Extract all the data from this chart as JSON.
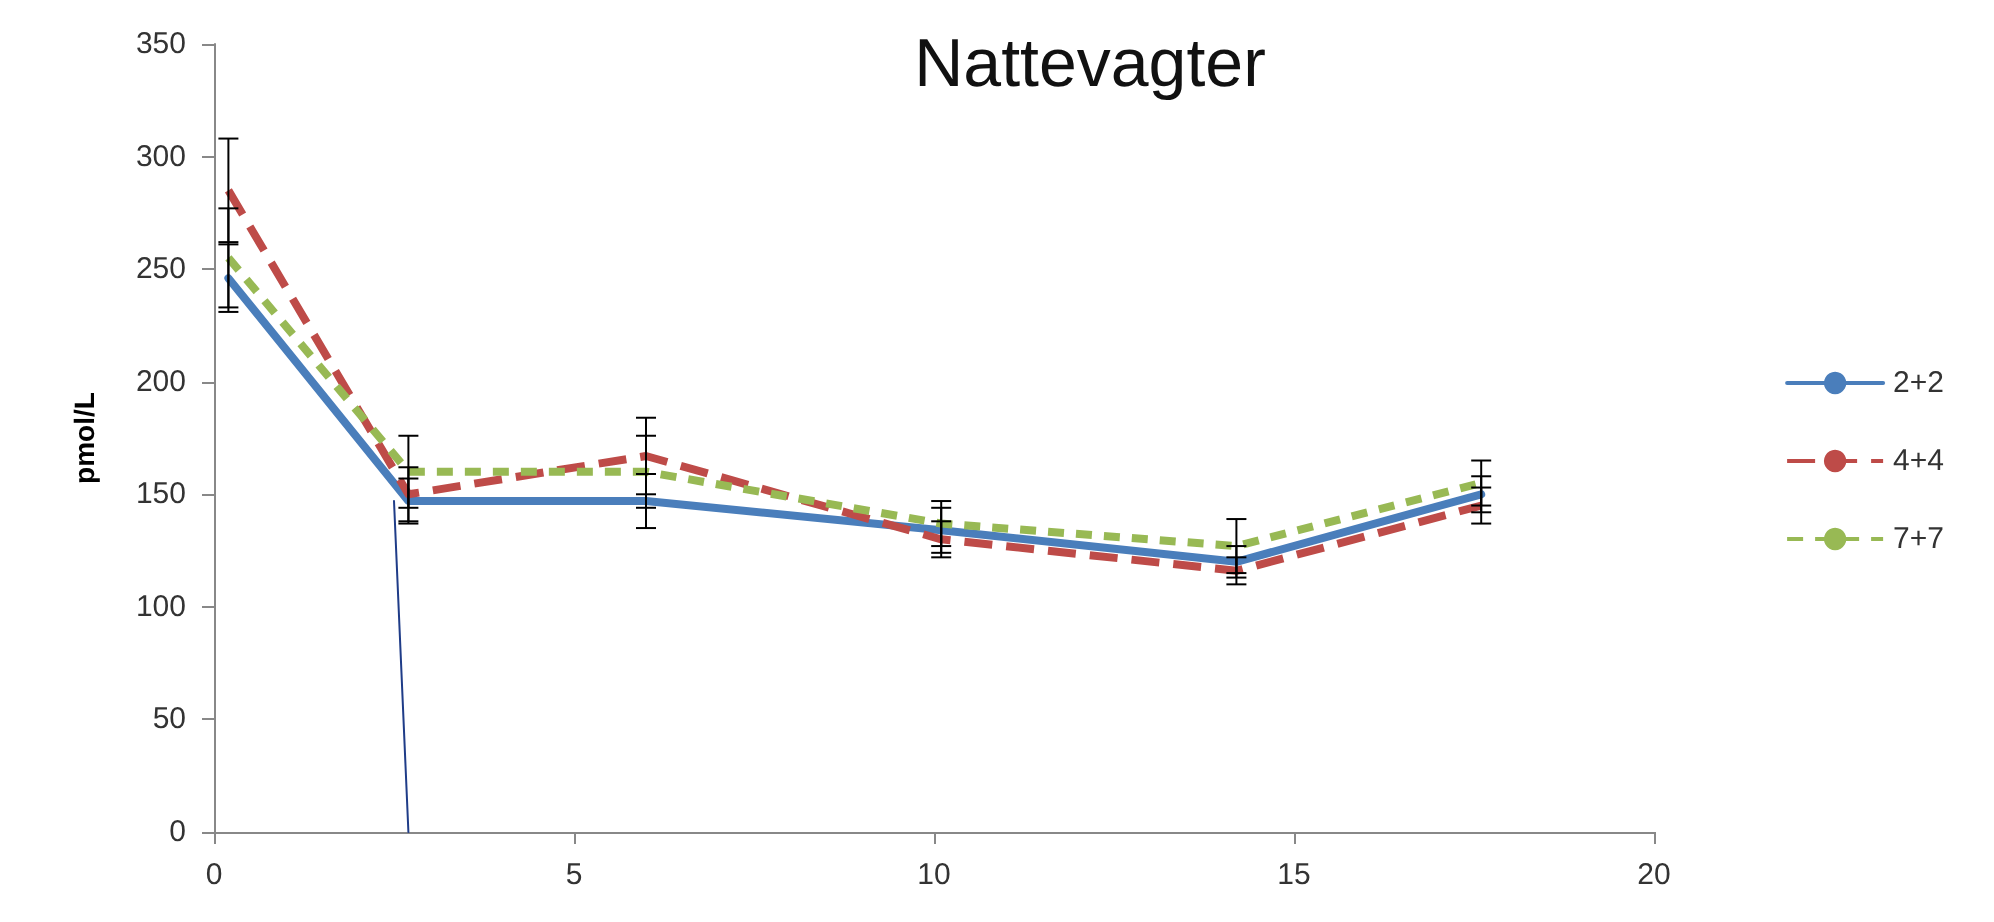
{
  "chart_data": {
    "type": "line",
    "title": "Nattevagter",
    "ylabel": "pmol/L",
    "x": [
      0.2,
      2.7,
      6,
      10.1,
      14.2,
      17.6
    ],
    "xlim": [
      0,
      20
    ],
    "xticks": [
      0,
      5,
      10,
      15,
      20
    ],
    "ylim": [
      0,
      350
    ],
    "yticks": [
      0,
      50,
      100,
      150,
      200,
      250,
      300,
      350
    ],
    "grid": false,
    "legend": "right",
    "marker": "none",
    "series": [
      {
        "name": "2+2",
        "color": "#4a7ebb",
        "line_style": "solid",
        "values": [
          246,
          147,
          147,
          134,
          120,
          150
        ],
        "errors": [
          15,
          10,
          12,
          10,
          7,
          8
        ]
      },
      {
        "name": "4+4",
        "color": "#be4b48",
        "line_style": "dashed",
        "values": [
          285,
          150,
          167,
          130,
          116,
          145
        ],
        "errors": [
          23,
          12,
          17,
          8,
          6,
          8
        ]
      },
      {
        "name": "7+7",
        "color": "#98b954",
        "line_style": "dotted",
        "values": [
          255,
          160,
          160,
          137,
          127,
          155
        ],
        "errors": [
          22,
          16,
          16,
          10,
          12,
          10
        ]
      },
      {
        "color": "#1f3c88",
        "line_style": "solid",
        "x": [
          2.5,
          2.7
        ],
        "values": [
          147,
          0
        ]
      }
    ]
  }
}
